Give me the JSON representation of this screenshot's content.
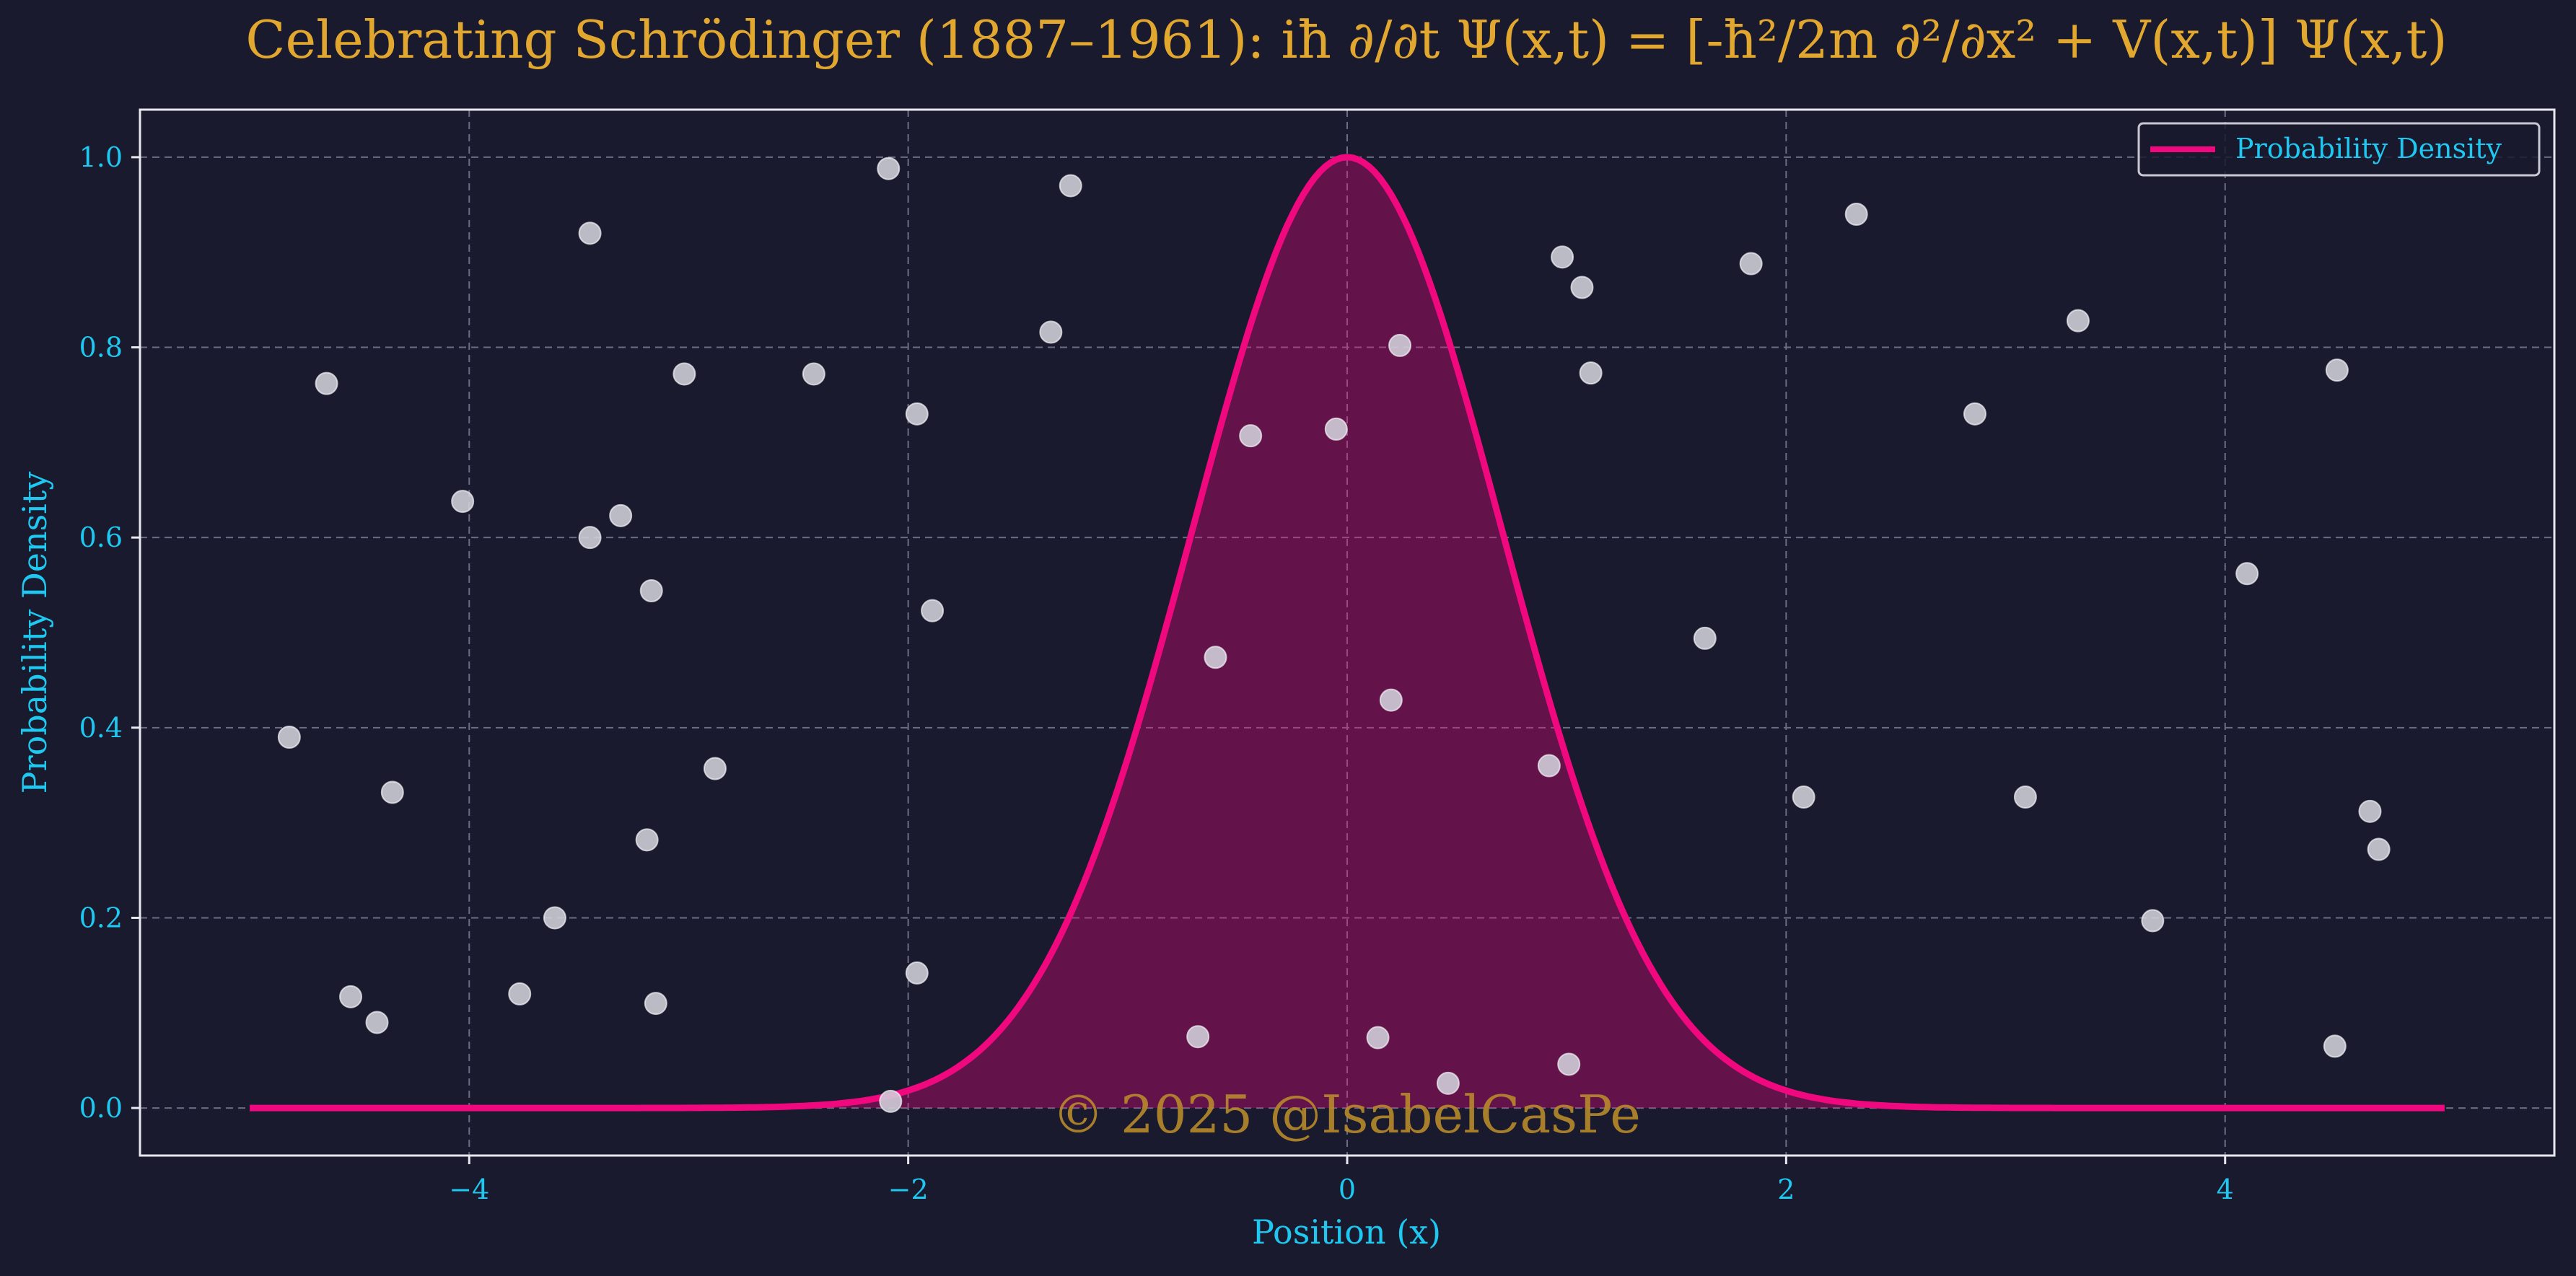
{
  "colors": {
    "background": "#1a1a2e",
    "title": "#e2a72e",
    "axis_text": "#1ec8f0",
    "curve": "#f0087f",
    "fill": "#5e1547",
    "grid": "#6b6d86",
    "frame": "#e8e8f0",
    "points": "#d2d2dc",
    "watermark": "#b78a2a"
  },
  "watermark": "© 2025 @IsabelCasPe",
  "chart_data": {
    "type": "line",
    "title": "Celebrating Schrödinger (1887–1961): iħ ∂/∂t Ψ(x,t) = [-ħ²/2m ∂²/∂x² + V(x,t)] Ψ(x,t)",
    "xlabel": "Position (x)",
    "ylabel": "Probability Density",
    "xlim": [
      -5.5,
      5.5
    ],
    "ylim": [
      -0.05,
      1.05
    ],
    "xticks": [
      -4,
      -2,
      0,
      2,
      4
    ],
    "xtick_labels": [
      "−4",
      "−2",
      "0",
      "2",
      "4"
    ],
    "yticks": [
      0.0,
      0.2,
      0.4,
      0.6,
      0.8,
      1.0
    ],
    "ytick_labels": [
      "0.0",
      "0.2",
      "0.4",
      "0.6",
      "0.8",
      "1.0"
    ],
    "grid": true,
    "legend": {
      "position": "top-right",
      "entries": [
        "Probability Density"
      ]
    },
    "series": [
      {
        "name": "Probability Density",
        "kind": "line-filled",
        "function": "exp(-x^2)",
        "x_range": [
          -5,
          5
        ]
      }
    ],
    "scatter_points": [
      [
        -4.82,
        0.39
      ],
      [
        -4.65,
        0.762
      ],
      [
        -4.54,
        0.117
      ],
      [
        -4.42,
        0.09
      ],
      [
        -4.35,
        0.332
      ],
      [
        -4.03,
        0.638
      ],
      [
        -3.77,
        0.12
      ],
      [
        -3.61,
        0.2
      ],
      [
        -3.45,
        0.92
      ],
      [
        -3.45,
        0.6
      ],
      [
        -3.31,
        0.623
      ],
      [
        -3.19,
        0.282
      ],
      [
        -3.17,
        0.544
      ],
      [
        -3.15,
        0.11
      ],
      [
        -3.02,
        0.772
      ],
      [
        -2.88,
        0.357
      ],
      [
        -2.43,
        0.772
      ],
      [
        -2.09,
        0.988
      ],
      [
        -2.08,
        0.007
      ],
      [
        -1.96,
        0.73
      ],
      [
        -1.96,
        0.142
      ],
      [
        -1.89,
        0.523
      ],
      [
        -1.35,
        0.816
      ],
      [
        -1.26,
        0.97
      ],
      [
        -0.68,
        0.075
      ],
      [
        -0.6,
        0.474
      ],
      [
        -0.44,
        0.707
      ],
      [
        -0.05,
        0.714
      ],
      [
        0.14,
        0.074
      ],
      [
        0.2,
        0.429
      ],
      [
        0.24,
        0.802
      ],
      [
        0.46,
        0.026
      ],
      [
        0.92,
        0.36
      ],
      [
        0.98,
        0.895
      ],
      [
        1.01,
        0.046
      ],
      [
        1.07,
        0.863
      ],
      [
        1.11,
        0.773
      ],
      [
        1.63,
        0.494
      ],
      [
        1.84,
        0.888
      ],
      [
        2.08,
        0.327
      ],
      [
        2.32,
        0.94
      ],
      [
        2.86,
        0.73
      ],
      [
        3.09,
        0.327
      ],
      [
        3.33,
        0.828
      ],
      [
        3.67,
        0.197
      ],
      [
        4.1,
        0.562
      ],
      [
        4.5,
        0.065
      ],
      [
        4.51,
        0.776
      ],
      [
        4.66,
        0.312
      ],
      [
        4.7,
        0.272
      ]
    ]
  }
}
